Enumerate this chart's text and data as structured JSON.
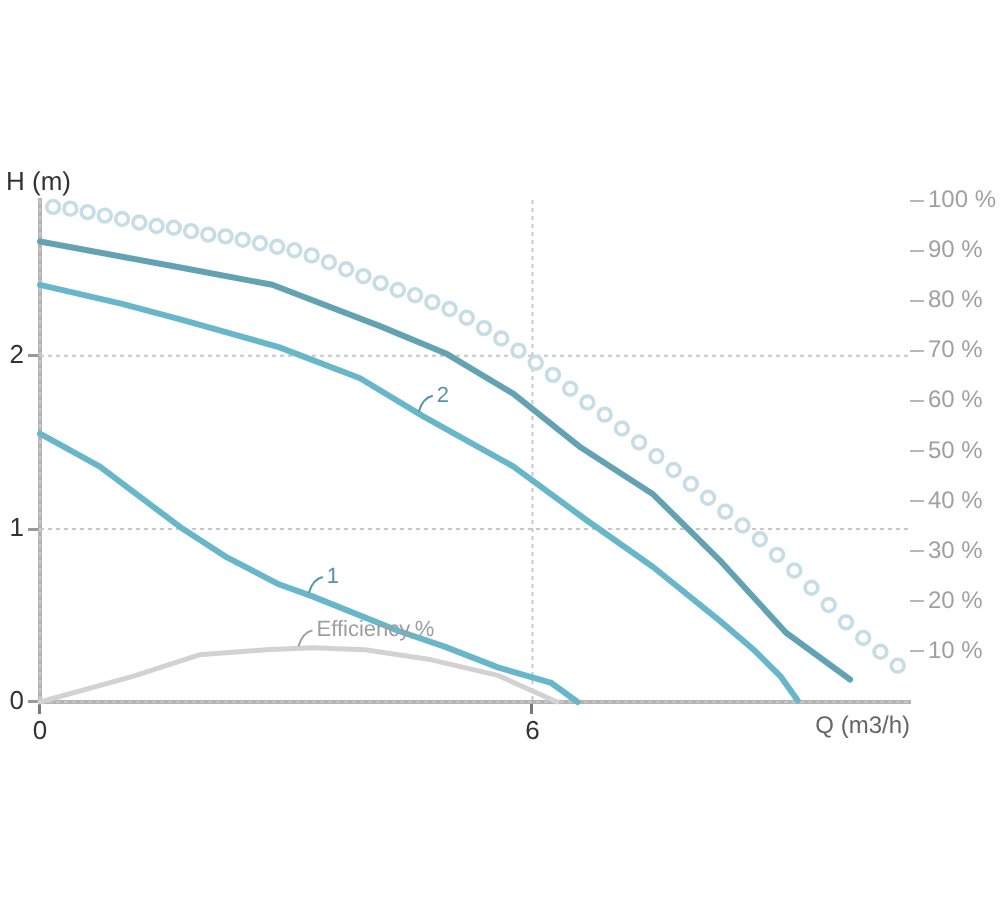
{
  "chart_data": {
    "type": "line",
    "xlabel": "Q (m3/h)",
    "ylabel": "H (m)",
    "xlim": [
      0,
      10.6
    ],
    "xticks": [
      0,
      6
    ],
    "ylim": [
      0,
      2.9
    ],
    "yticks": [
      0,
      1,
      2
    ],
    "y2lim": [
      0,
      100
    ],
    "y2ticks": [
      {
        "value": 10,
        "label": "10 %"
      },
      {
        "value": 20,
        "label": "20 %"
      },
      {
        "value": 30,
        "label": "30 %"
      },
      {
        "value": 40,
        "label": "40 %"
      },
      {
        "value": 50,
        "label": "50 %"
      },
      {
        "value": 60,
        "label": "60 %"
      },
      {
        "value": 70,
        "label": "70 %"
      },
      {
        "value": 80,
        "label": "80 %"
      },
      {
        "value": 90,
        "label": "90 %"
      },
      {
        "value": 100,
        "label": "100 %"
      }
    ],
    "grid": true,
    "series": [
      {
        "type": "scatter",
        "marker": "circle",
        "color": "#c6dde6",
        "x": [
          0.16,
          0.37,
          0.58,
          0.79,
          1.0,
          1.21,
          1.42,
          1.63,
          1.84,
          2.05,
          2.26,
          2.47,
          2.68,
          2.89,
          3.1,
          3.31,
          3.52,
          3.73,
          3.94,
          4.15,
          4.36,
          4.57,
          4.78,
          4.99,
          5.2,
          5.41,
          5.62,
          5.83,
          6.04,
          6.25,
          6.46,
          6.67,
          6.88,
          7.09,
          7.3,
          7.51,
          7.72,
          7.93,
          8.14,
          8.35,
          8.56,
          8.77,
          8.98,
          9.19,
          9.4,
          9.61,
          9.82,
          10.03,
          10.24,
          10.45
        ],
        "values": [
          2.86,
          2.85,
          2.83,
          2.81,
          2.79,
          2.77,
          2.75,
          2.74,
          2.72,
          2.7,
          2.69,
          2.67,
          2.65,
          2.63,
          2.61,
          2.58,
          2.54,
          2.5,
          2.46,
          2.42,
          2.38,
          2.35,
          2.31,
          2.27,
          2.22,
          2.16,
          2.1,
          2.03,
          1.96,
          1.89,
          1.81,
          1.73,
          1.66,
          1.58,
          1.5,
          1.42,
          1.34,
          1.26,
          1.18,
          1.1,
          1.02,
          0.94,
          0.85,
          0.76,
          0.66,
          0.56,
          0.46,
          0.37,
          0.29,
          0.21
        ]
      },
      {
        "color": "#62a2b3",
        "x": [
          0,
          1.71,
          2.83,
          4.15,
          4.96,
          5.77,
          6.59,
          7.47,
          8.28,
          9.09,
          9.87
        ],
        "values": [
          2.66,
          2.51,
          2.41,
          2.17,
          2.01,
          1.78,
          1.47,
          1.2,
          0.82,
          0.4,
          0.13
        ]
      },
      {
        "name": "2",
        "color": "#68b6ca",
        "x": [
          0,
          1,
          1.71,
          2.91,
          3.9,
          4.67,
          5.77,
          6.66,
          7.47,
          8.28,
          8.7,
          9.02,
          9.23
        ],
        "values": [
          2.41,
          2.3,
          2.21,
          2.05,
          1.87,
          1.65,
          1.36,
          1.05,
          0.78,
          0.47,
          0.3,
          0.15,
          0.01
        ]
      },
      {
        "name": "1",
        "color": "#68b6ca",
        "x": [
          0,
          0.73,
          1.71,
          2.26,
          2.91,
          3.32,
          4.37,
          4.93,
          5.58,
          6.23,
          6.55
        ],
        "values": [
          1.55,
          1.36,
          1.01,
          0.84,
          0.68,
          0.61,
          0.41,
          0.32,
          0.2,
          0.11,
          0
        ]
      },
      {
        "name": "Efficiency,%",
        "axis": "y2",
        "color": "#d2d2d2",
        "x": [
          0,
          1.13,
          1.94,
          2.75,
          3.32,
          3.96,
          4.77,
          5.58,
          6.3
        ],
        "values": [
          0,
          5.1,
          9.4,
          10.4,
          10.8,
          10.4,
          8.4,
          5.3,
          0
        ]
      }
    ]
  }
}
